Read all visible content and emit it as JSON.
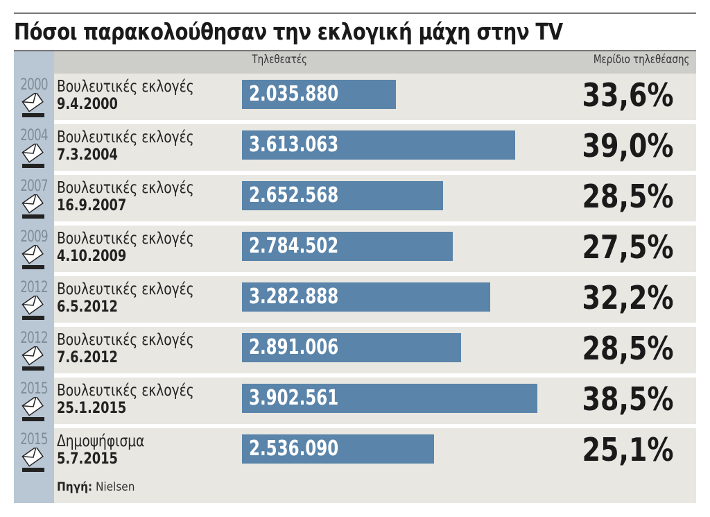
{
  "chart_data": {
    "type": "bar",
    "orientation": "horizontal",
    "title": "Πόσοι παρακολούθησαν την εκλογική μάχη στην TV",
    "column_headers": {
      "viewers": "Τηλεθεατές",
      "share": "Μερίδιο τηλεθέασης"
    },
    "bar_color": "#5a84a9",
    "rows": [
      {
        "year": "2000",
        "event": "Βουλευτικές εκλογές",
        "date": "9.4.2000",
        "viewers": 2035880,
        "viewers_label": "2.035.880",
        "share": "33,6%"
      },
      {
        "year": "2004",
        "event": "Βουλευτικές εκλογές",
        "date": "7.3.2004",
        "viewers": 3613063,
        "viewers_label": "3.613.063",
        "share": "39,0%"
      },
      {
        "year": "2007",
        "event": "Βουλευτικές εκλογές",
        "date": "16.9.2007",
        "viewers": 2652568,
        "viewers_label": "2.652.568",
        "share": "28,5%"
      },
      {
        "year": "2009",
        "event": "Βουλευτικές εκλογές",
        "date": "4.10.2009",
        "viewers": 2784502,
        "viewers_label": "2.784.502",
        "share": "27,5%"
      },
      {
        "year": "2012",
        "event": "Βουλευτικές εκλογές",
        "date": "6.5.2012",
        "viewers": 3282888,
        "viewers_label": "3.282.888",
        "share": "32,2%"
      },
      {
        "year": "2012",
        "event": "Βουλευτικές εκλογές",
        "date": "7.6.2012",
        "viewers": 2891006,
        "viewers_label": "2.891.006",
        "share": "28,5%"
      },
      {
        "year": "2015",
        "event": "Βουλευτικές εκλογές",
        "date": "25.1.2015",
        "viewers": 3902561,
        "viewers_label": "3.902.561",
        "share": "38,5%"
      },
      {
        "year": "2015",
        "event": "Δημοψήφισμα",
        "date": "5.7.2015",
        "viewers": 2536090,
        "viewers_label": "2.536.090",
        "share": "25,1%"
      }
    ],
    "source_label": "Πηγή:",
    "source": "Nielsen",
    "icon": "ballot-envelope-icon"
  }
}
